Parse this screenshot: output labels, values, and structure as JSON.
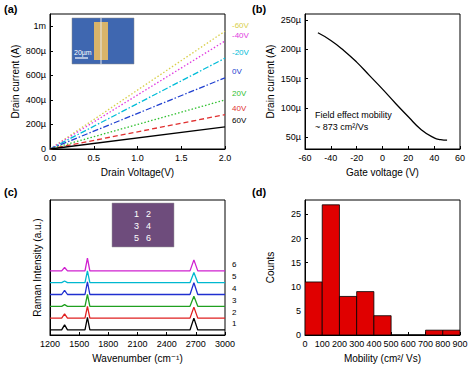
{
  "chart_data": [
    {
      "label": "(a)",
      "type": "line",
      "x_label": "Drain Voltage(V)",
      "y_label": "Drain current (A)",
      "xlim": [
        0,
        2
      ],
      "xticks": [
        {
          "value": 0,
          "label": "0.0"
        },
        0.5,
        {
          "value": 1,
          "label": "1.0"
        },
        1.5,
        {
          "value": 2,
          "label": "2.0"
        }
      ],
      "ylim": [
        0,
        0.0011
      ],
      "yticks": [
        0,
        {
          "value": 0.0002,
          "label": "200µ"
        },
        {
          "value": 0.0004,
          "label": "400µ"
        },
        {
          "value": 0.0006,
          "label": "600µ"
        },
        {
          "value": 0.0008,
          "label": "800µ"
        },
        {
          "value": 0.001,
          "label": "1m"
        }
      ],
      "annotations": [
        "20µm"
      ],
      "x": [
        0,
        2
      ],
      "series": [
        {
          "name": "-60V",
          "color": "#d8cf4a",
          "line_style": "dotted",
          "values": [
            0,
            0.00096
          ]
        },
        {
          "name": "-40V",
          "color": "#e03ce0",
          "line_style": "dotted",
          "values": [
            0,
            0.00088
          ]
        },
        {
          "name": "-20V",
          "color": "#00bcd8",
          "line_style": "dashdot",
          "values": [
            0,
            0.00074
          ]
        },
        {
          "name": "0V",
          "color": "#2040d0",
          "line_style": "dashdot",
          "values": [
            0,
            0.00058
          ]
        },
        {
          "name": "20V",
          "color": "#30c030",
          "line_style": "dotted",
          "values": [
            0,
            0.0004
          ]
        },
        {
          "name": "40V",
          "color": "#e03030",
          "line_style": "dashed",
          "values": [
            0,
            0.00028
          ]
        },
        {
          "name": "60V",
          "color": "#000000",
          "line_style": "solid",
          "values": [
            0,
            0.00018
          ]
        }
      ]
    },
    {
      "label": "(b)",
      "type": "line",
      "x_label": "Gate voltage (V)",
      "y_label": "Drain current (A)",
      "xlim": [
        -60,
        60
      ],
      "xticks": [
        -60,
        -40,
        -20,
        0,
        20,
        40,
        60
      ],
      "ylim": [
        3e-05,
        0.00026
      ],
      "yticks": [
        {
          "value": 5e-05,
          "label": "50µ"
        },
        {
          "value": 0.0001,
          "label": "100µ"
        },
        {
          "value": 0.00015,
          "label": "150µ"
        },
        {
          "value": 0.0002,
          "label": "200µ"
        },
        {
          "value": 0.00025,
          "label": "250µ"
        }
      ],
      "annotations": [
        "Field effect mobility",
        "~ 873 cm²/Vs"
      ],
      "x": [
        -50,
        -40,
        -30,
        -20,
        -10,
        0,
        10,
        20,
        30,
        40,
        45,
        50
      ],
      "color": "#000000",
      "values": [
        0.000228,
        0.000215,
        0.000198,
        0.000178,
        0.000155,
        0.000132,
        0.000108,
        8.5e-05,
        6.3e-05,
        4.9e-05,
        4.6e-05,
        4.5e-05
      ]
    },
    {
      "label": "(c)",
      "type": "line",
      "x_label": "Wavenumber (cm⁻¹)",
      "y_label": "Raman Intensity (a.u.)",
      "tick_labels": "x",
      "xlim": [
        1200,
        3000
      ],
      "xticks": [
        1200,
        1500,
        1800,
        2100,
        2400,
        2700,
        3000
      ],
      "ylim": [
        0,
        8
      ],
      "inset_labels": [
        "1",
        "2",
        "3",
        "4",
        "5",
        "6"
      ],
      "x": [
        1200,
        1320,
        1350,
        1380,
        1500,
        1560,
        1585,
        1610,
        1700,
        2400,
        2640,
        2680,
        2720,
        3000
      ],
      "series": [
        {
          "name": "1",
          "color": "#000000",
          "values": [
            0.3,
            0.3,
            0.6,
            0.3,
            0.3,
            0.3,
            1.05,
            0.3,
            0.3,
            0.3,
            0.3,
            1.0,
            0.3,
            0.3
          ]
        },
        {
          "name": "2",
          "color": "#e02020",
          "values": [
            1.0,
            1.0,
            1.25,
            1.0,
            1.0,
            1.0,
            1.7,
            1.0,
            1.0,
            1.0,
            1.0,
            1.65,
            1.0,
            1.0
          ]
        },
        {
          "name": "3",
          "color": "#20a020",
          "values": [
            1.7,
            1.7,
            1.8,
            1.7,
            1.7,
            1.7,
            2.4,
            1.7,
            1.7,
            1.7,
            1.7,
            2.3,
            1.7,
            1.7
          ]
        },
        {
          "name": "4",
          "color": "#2030d0",
          "values": [
            2.4,
            2.4,
            2.65,
            2.4,
            2.4,
            2.4,
            3.15,
            2.4,
            2.4,
            2.4,
            2.4,
            3.1,
            2.4,
            2.4
          ]
        },
        {
          "name": "5",
          "color": "#00b8d0",
          "values": [
            3.1,
            3.1,
            3.2,
            3.1,
            3.1,
            3.1,
            3.8,
            3.1,
            3.1,
            3.1,
            3.1,
            3.7,
            3.1,
            3.1
          ]
        },
        {
          "name": "6",
          "color": "#d020d0",
          "values": [
            3.8,
            3.8,
            4.0,
            3.8,
            3.8,
            3.8,
            4.55,
            3.8,
            3.8,
            3.8,
            3.8,
            4.45,
            3.8,
            3.8
          ]
        }
      ]
    },
    {
      "label": "(d)",
      "type": "histogram",
      "x_label": "Mobility (cm²/ Vs)",
      "y_label": "Counts",
      "xlim": [
        0,
        900
      ],
      "xticks": [
        0,
        100,
        200,
        300,
        400,
        500,
        600,
        700,
        800,
        900
      ],
      "ylim": [
        0,
        28
      ],
      "yticks": [
        0,
        5,
        10,
        15,
        20,
        25
      ],
      "color": "#e00000",
      "bins": [
        0,
        100,
        200,
        300,
        400,
        500,
        600,
        700,
        800,
        900
      ],
      "counts": [
        11,
        27,
        8,
        9,
        4,
        0,
        0,
        1,
        1
      ]
    }
  ]
}
